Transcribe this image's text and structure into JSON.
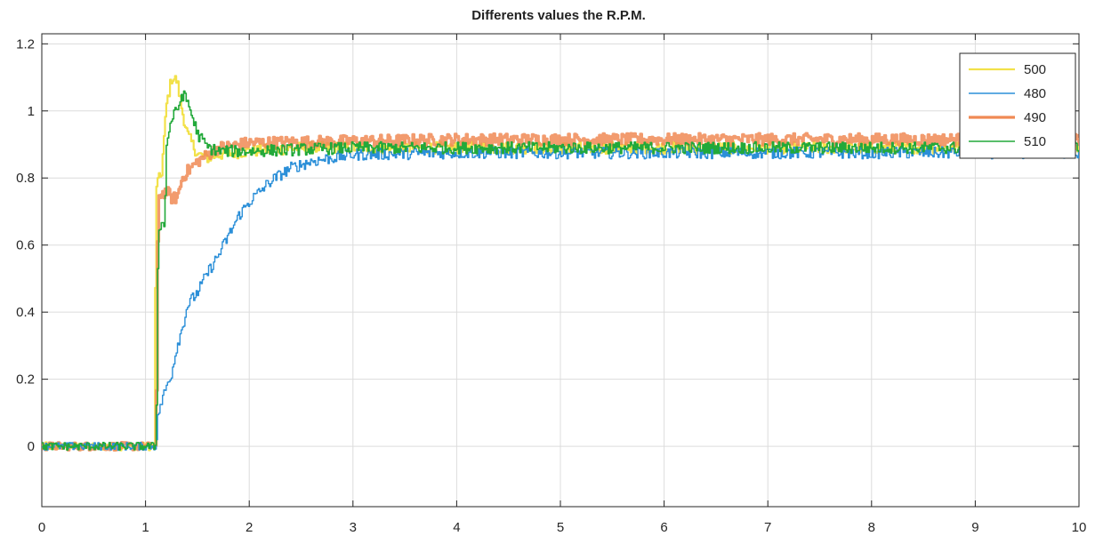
{
  "chart_data": {
    "type": "line",
    "title": "Differents values the R.P.M.",
    "xlabel": "",
    "ylabel": "",
    "xlim": [
      0,
      10
    ],
    "ylim": [
      -0.18,
      1.23
    ],
    "xticks": [
      0,
      1,
      2,
      3,
      4,
      5,
      6,
      7,
      8,
      9,
      10
    ],
    "xtick_labels": [
      "0",
      "1",
      "2",
      "3",
      "4",
      "5",
      "6",
      "7",
      "8",
      "9",
      "10"
    ],
    "yticks": [
      0,
      0.2,
      0.4,
      0.6,
      0.8,
      1,
      1.2
    ],
    "ytick_labels": [
      "0",
      "0.2",
      "0.4",
      "0.6",
      "0.8",
      "1",
      "1.2"
    ],
    "grid": true,
    "legend_position": "top-right",
    "series": [
      {
        "name": "500",
        "color": "#f2e14a",
        "x": [
          0,
          0.5,
          1.08,
          1.1,
          1.15,
          1.2,
          1.25,
          1.3,
          1.35,
          1.4,
          1.5,
          1.6,
          1.7,
          2,
          2.5,
          3,
          4,
          5,
          6,
          7,
          8,
          9,
          10
        ],
        "y": [
          0,
          0,
          0,
          0.78,
          0.81,
          1.02,
          1.1,
          1.09,
          1.0,
          0.93,
          0.87,
          0.86,
          0.87,
          0.88,
          0.89,
          0.89,
          0.89,
          0.89,
          0.89,
          0.89,
          0.89,
          0.89,
          0.89
        ]
      },
      {
        "name": "480",
        "color": "#2b8fd8",
        "x": [
          0,
          0.5,
          1.1,
          1.12,
          1.2,
          1.25,
          1.3,
          1.35,
          1.4,
          1.5,
          1.6,
          1.7,
          1.8,
          1.9,
          2.0,
          2.2,
          2.4,
          2.6,
          2.8,
          3.0,
          4,
          5,
          6,
          7,
          8,
          9,
          10
        ],
        "y": [
          0,
          0,
          0,
          0.1,
          0.18,
          0.22,
          0.3,
          0.35,
          0.42,
          0.46,
          0.52,
          0.57,
          0.63,
          0.69,
          0.73,
          0.79,
          0.83,
          0.85,
          0.86,
          0.87,
          0.875,
          0.875,
          0.875,
          0.875,
          0.875,
          0.875,
          0.875
        ]
      },
      {
        "name": "490",
        "color": "#f08a55",
        "x": [
          0,
          0.5,
          1.1,
          1.12,
          1.2,
          1.25,
          1.3,
          1.35,
          1.4,
          1.5,
          1.6,
          1.7,
          2,
          3,
          4,
          5,
          6,
          7,
          8,
          9,
          10
        ],
        "y": [
          0,
          0,
          0,
          0.75,
          0.76,
          0.74,
          0.74,
          0.8,
          0.82,
          0.85,
          0.87,
          0.89,
          0.905,
          0.91,
          0.915,
          0.915,
          0.915,
          0.915,
          0.915,
          0.915,
          0.915
        ]
      },
      {
        "name": "510",
        "color": "#22a93a",
        "x": [
          0,
          0.5,
          1.1,
          1.12,
          1.18,
          1.2,
          1.25,
          1.3,
          1.35,
          1.4,
          1.45,
          1.5,
          1.6,
          1.7,
          2,
          2.5,
          3,
          4,
          5,
          6,
          7,
          8,
          9,
          10
        ],
        "y": [
          0,
          0,
          0,
          0.66,
          0.66,
          0.9,
          0.98,
          1.0,
          1.05,
          1.03,
          0.98,
          0.93,
          0.89,
          0.88,
          0.88,
          0.885,
          0.89,
          0.89,
          0.89,
          0.89,
          0.89,
          0.89,
          0.89,
          0.89
        ]
      }
    ]
  }
}
